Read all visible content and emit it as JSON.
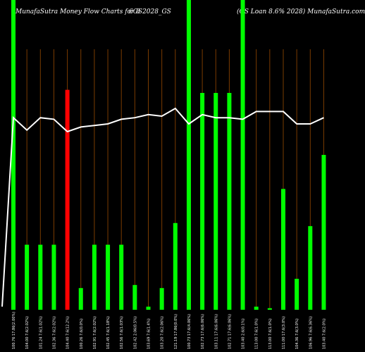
{
  "header": {
    "left": "MunafaSutra  Money Flow  Charts for 8",
    "middle": "6GS2028_GS",
    "right": "(GS  Loan  8.6% 2028) MunafaSutra.com"
  },
  "colors": {
    "background": "#000000",
    "up_bar": "#00ff00",
    "down_bar": "#ff0000",
    "grid_line": "#7a3b00",
    "line": "#ffffff",
    "label": "#ffffff"
  },
  "chart_data": {
    "type": "bar",
    "ylim": [
      0,
      100
    ],
    "categories": [
      "100.76 17.86(2.00%)",
      "104.00 7.6(2.02%)",
      "101.24 7.6(1.02%)",
      "102.36 7.6(2.02%)",
      "104.40 7.6(12.2%)",
      "100.26 7.6(0.0%)",
      "102.91 7.6(2.02%)",
      "102.45 7.6(1.18%)",
      "102.56 7.6(1.03%)",
      "102.42 2.06(0.5%)",
      "103.69 7.6(1.4%)",
      "103.20 7.6(2.06%)",
      "121.19 17.86(0.0%)",
      "100.73 17.6(4.06%)",
      "102.73 17.6(6.06%)",
      "103.11 17.6(6.06%)",
      "102.71 17.6(6.06%)",
      "103.40 2.6(0.1%)",
      "113.00 7.6(1.0%)",
      "113.00 7.6(1.0%)",
      "111.00 17.6(3.0%)",
      "104.36 7.6(3.0%)",
      "106.96 7.6(6.36%)",
      "103.40 7.6(2.0%)"
    ],
    "series": [
      {
        "values": [
          100,
          21,
          21,
          21,
          71,
          7,
          21,
          21,
          21,
          8,
          1,
          7,
          28,
          100,
          70,
          70,
          70,
          100,
          1,
          0.5,
          39,
          10,
          27,
          50
        ],
        "colors": [
          "up",
          "up",
          "up",
          "up",
          "down",
          "up",
          "up",
          "up",
          "up",
          "up",
          "up",
          "up",
          "up",
          "up",
          "up",
          "up",
          "up",
          "up",
          "up",
          "up",
          "up",
          "up",
          "up",
          "up"
        ]
      },
      {
        "line": [
          62,
          58,
          62,
          61.5,
          57.5,
          59,
          59.5,
          60,
          61.5,
          62,
          63,
          62.5,
          65,
          60,
          63,
          62,
          62,
          61.5,
          64,
          64,
          64,
          60,
          60,
          62
        ]
      }
    ]
  }
}
